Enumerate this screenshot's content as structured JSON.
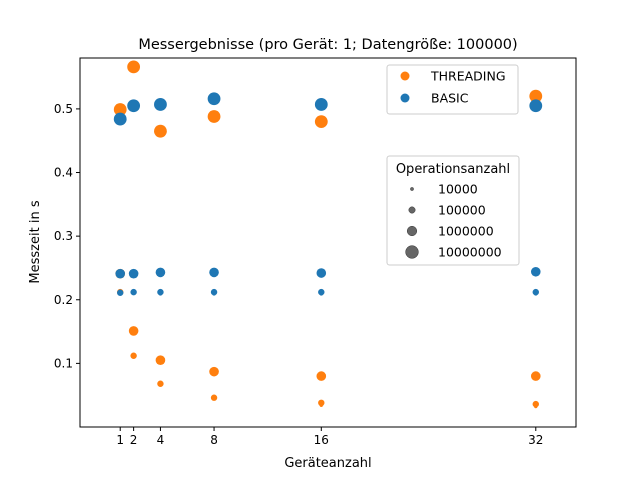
{
  "chart_data": {
    "type": "scatter",
    "title": "Messergebnisse (pro Gerät: 1; Datengröße: 100000)",
    "xlabel": "Geräteanzahl",
    "ylabel": "Messzeit in s",
    "x_ticks": [
      1,
      2,
      4,
      8,
      16,
      32
    ],
    "y_ticks": [
      0.1,
      0.2,
      0.3,
      0.4,
      0.5
    ],
    "xlim": [
      -2.0,
      35.0
    ],
    "ylim": [
      0.0,
      0.58
    ],
    "grid": false,
    "color_legend": {
      "placement": "top-right",
      "entries": [
        {
          "name": "THREADING",
          "color": "#ff7f0e"
        },
        {
          "name": "BASIC",
          "color": "#1f77b4"
        }
      ]
    },
    "size_legend": {
      "title": "Operationsanzahl",
      "placement": "center-right",
      "entries": [
        {
          "label": "10000",
          "ops": 10000
        },
        {
          "label": "100000",
          "ops": 100000
        },
        {
          "label": "1000000",
          "ops": 1000000
        },
        {
          "label": "10000000",
          "ops": 10000000
        }
      ]
    },
    "series": [
      {
        "name": "THREADING",
        "color": "#ff7f0e",
        "points": [
          {
            "x": 1,
            "y": 0.499,
            "ops": 10000000
          },
          {
            "x": 1,
            "y": 0.241,
            "ops": 1000000
          },
          {
            "x": 1,
            "y": 0.212,
            "ops": 100000
          },
          {
            "x": 2,
            "y": 0.566,
            "ops": 10000000
          },
          {
            "x": 2,
            "y": 0.151,
            "ops": 1000000
          },
          {
            "x": 2,
            "y": 0.112,
            "ops": 100000
          },
          {
            "x": 4,
            "y": 0.465,
            "ops": 10000000
          },
          {
            "x": 4,
            "y": 0.105,
            "ops": 1000000
          },
          {
            "x": 4,
            "y": 0.068,
            "ops": 100000
          },
          {
            "x": 8,
            "y": 0.488,
            "ops": 10000000
          },
          {
            "x": 8,
            "y": 0.087,
            "ops": 1000000
          },
          {
            "x": 8,
            "y": 0.046,
            "ops": 100000
          },
          {
            "x": 16,
            "y": 0.48,
            "ops": 10000000
          },
          {
            "x": 16,
            "y": 0.08,
            "ops": 1000000
          },
          {
            "x": 16,
            "y": 0.038,
            "ops": 100000
          },
          {
            "x": 16,
            "y": 0.034,
            "ops": 10000
          },
          {
            "x": 32,
            "y": 0.52,
            "ops": 10000000
          },
          {
            "x": 32,
            "y": 0.08,
            "ops": 1000000
          },
          {
            "x": 32,
            "y": 0.036,
            "ops": 100000
          },
          {
            "x": 32,
            "y": 0.032,
            "ops": 10000
          }
        ]
      },
      {
        "name": "BASIC",
        "color": "#1f77b4",
        "points": [
          {
            "x": 1,
            "y": 0.484,
            "ops": 10000000
          },
          {
            "x": 1,
            "y": 0.241,
            "ops": 1000000
          },
          {
            "x": 1,
            "y": 0.211,
            "ops": 100000
          },
          {
            "x": 2,
            "y": 0.505,
            "ops": 10000000
          },
          {
            "x": 2,
            "y": 0.241,
            "ops": 1000000
          },
          {
            "x": 2,
            "y": 0.212,
            "ops": 100000
          },
          {
            "x": 4,
            "y": 0.507,
            "ops": 10000000
          },
          {
            "x": 4,
            "y": 0.243,
            "ops": 1000000
          },
          {
            "x": 4,
            "y": 0.212,
            "ops": 100000
          },
          {
            "x": 4,
            "y": 0.209,
            "ops": 10000
          },
          {
            "x": 8,
            "y": 0.516,
            "ops": 10000000
          },
          {
            "x": 8,
            "y": 0.243,
            "ops": 1000000
          },
          {
            "x": 8,
            "y": 0.212,
            "ops": 100000
          },
          {
            "x": 8,
            "y": 0.209,
            "ops": 10000
          },
          {
            "x": 16,
            "y": 0.507,
            "ops": 10000000
          },
          {
            "x": 16,
            "y": 0.242,
            "ops": 1000000
          },
          {
            "x": 16,
            "y": 0.212,
            "ops": 100000
          },
          {
            "x": 16,
            "y": 0.209,
            "ops": 10000
          },
          {
            "x": 32,
            "y": 0.505,
            "ops": 10000000
          },
          {
            "x": 32,
            "y": 0.244,
            "ops": 1000000
          },
          {
            "x": 32,
            "y": 0.212,
            "ops": 100000
          },
          {
            "x": 32,
            "y": 0.209,
            "ops": 10000
          }
        ]
      }
    ]
  }
}
